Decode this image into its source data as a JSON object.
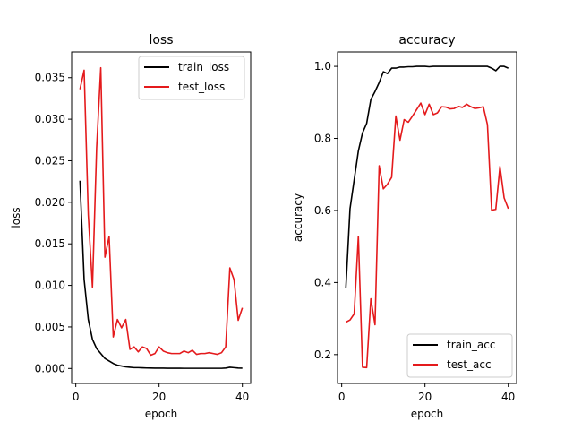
{
  "chart_data": [
    {
      "type": "line",
      "title": "loss",
      "xlabel": "epoch",
      "ylabel": "loss",
      "xlim": [
        -1.0,
        42.0
      ],
      "ylim": [
        -0.0018,
        0.0381
      ],
      "xticks": [
        0,
        20,
        40
      ],
      "xtick_labels": [
        "0",
        "20",
        "40"
      ],
      "yticks": [
        0.0,
        0.005,
        0.01,
        0.015,
        0.02,
        0.025,
        0.03,
        0.035
      ],
      "ytick_labels": [
        "0.000",
        "0.005",
        "0.010",
        "0.015",
        "0.020",
        "0.025",
        "0.030",
        "0.035"
      ],
      "grid": false,
      "legend_position": "top-right",
      "x": [
        1,
        2,
        3,
        4,
        5,
        6,
        7,
        8,
        9,
        10,
        11,
        12,
        13,
        14,
        15,
        16,
        17,
        18,
        19,
        20,
        21,
        22,
        23,
        24,
        25,
        26,
        27,
        28,
        29,
        30,
        31,
        32,
        33,
        34,
        35,
        36,
        37,
        38,
        39,
        40
      ],
      "series": [
        {
          "name": "train_loss",
          "color": "#000000",
          "values": [
            0.0226,
            0.0107,
            0.0059,
            0.0035,
            0.0024,
            0.0018,
            0.0012,
            0.0009,
            0.0006,
            0.0004,
            0.0003,
            0.0002,
            0.00015,
            0.0001,
            0.0001,
            8e-05,
            6e-05,
            5e-05,
            4e-05,
            4e-05,
            4e-05,
            3e-05,
            3e-05,
            3e-05,
            3e-05,
            2e-05,
            2e-05,
            2e-05,
            2e-05,
            2e-05,
            2e-05,
            2e-05,
            2e-05,
            2e-05,
            2e-05,
            5e-05,
            0.00015,
            0.0001,
            5e-05,
            4e-05
          ]
        },
        {
          "name": "test_loss",
          "color": "#e41a1c",
          "values": [
            0.0336,
            0.0359,
            0.0185,
            0.0098,
            0.0265,
            0.0362,
            0.0134,
            0.0159,
            0.0038,
            0.0059,
            0.0049,
            0.0059,
            0.0023,
            0.0026,
            0.002,
            0.0026,
            0.0024,
            0.0016,
            0.0018,
            0.0026,
            0.0021,
            0.0019,
            0.0018,
            0.0018,
            0.0018,
            0.0021,
            0.0019,
            0.0022,
            0.0017,
            0.0018,
            0.0018,
            0.0019,
            0.0018,
            0.0017,
            0.0019,
            0.0026,
            0.0121,
            0.0107,
            0.0058,
            0.0073
          ]
        }
      ]
    },
    {
      "type": "line",
      "title": "accuracy",
      "xlabel": "epoch",
      "ylabel": "accuracy",
      "xlim": [
        -1.0,
        42.0
      ],
      "ylim": [
        0.12,
        1.04
      ],
      "xticks": [
        0,
        20,
        40
      ],
      "xtick_labels": [
        "0",
        "20",
        "40"
      ],
      "yticks": [
        0.2,
        0.4,
        0.6,
        0.8,
        1.0
      ],
      "ytick_labels": [
        "0.2",
        "0.4",
        "0.6",
        "0.8",
        "1.0"
      ],
      "grid": false,
      "legend_position": "bottom-right",
      "x": [
        1,
        2,
        3,
        4,
        5,
        6,
        7,
        8,
        9,
        10,
        11,
        12,
        13,
        14,
        15,
        16,
        17,
        18,
        19,
        20,
        21,
        22,
        23,
        24,
        25,
        26,
        27,
        28,
        29,
        30,
        31,
        32,
        33,
        34,
        35,
        36,
        37,
        38,
        39,
        40
      ],
      "series": [
        {
          "name": "train_acc",
          "color": "#000000",
          "values": [
            0.385,
            0.605,
            0.685,
            0.765,
            0.815,
            0.842,
            0.908,
            0.93,
            0.955,
            0.985,
            0.98,
            0.995,
            0.995,
            0.998,
            0.998,
            0.999,
            0.999,
            1.0,
            1.0,
            1.0,
            0.999,
            1.0,
            1.0,
            1.0,
            1.0,
            1.0,
            1.0,
            1.0,
            1.0,
            1.0,
            1.0,
            1.0,
            1.0,
            1.0,
            1.0,
            0.995,
            0.988,
            1.0,
            1.0,
            0.995
          ]
        },
        {
          "name": "test_acc",
          "color": "#e41a1c",
          "values": [
            0.29,
            0.296,
            0.313,
            0.528,
            0.165,
            0.164,
            0.355,
            0.283,
            0.724,
            0.66,
            0.673,
            0.692,
            0.862,
            0.795,
            0.852,
            0.845,
            0.862,
            0.88,
            0.898,
            0.866,
            0.895,
            0.866,
            0.871,
            0.888,
            0.887,
            0.882,
            0.883,
            0.889,
            0.886,
            0.895,
            0.888,
            0.883,
            0.885,
            0.888,
            0.838,
            0.601,
            0.603,
            0.722,
            0.635,
            0.605
          ]
        }
      ]
    }
  ]
}
